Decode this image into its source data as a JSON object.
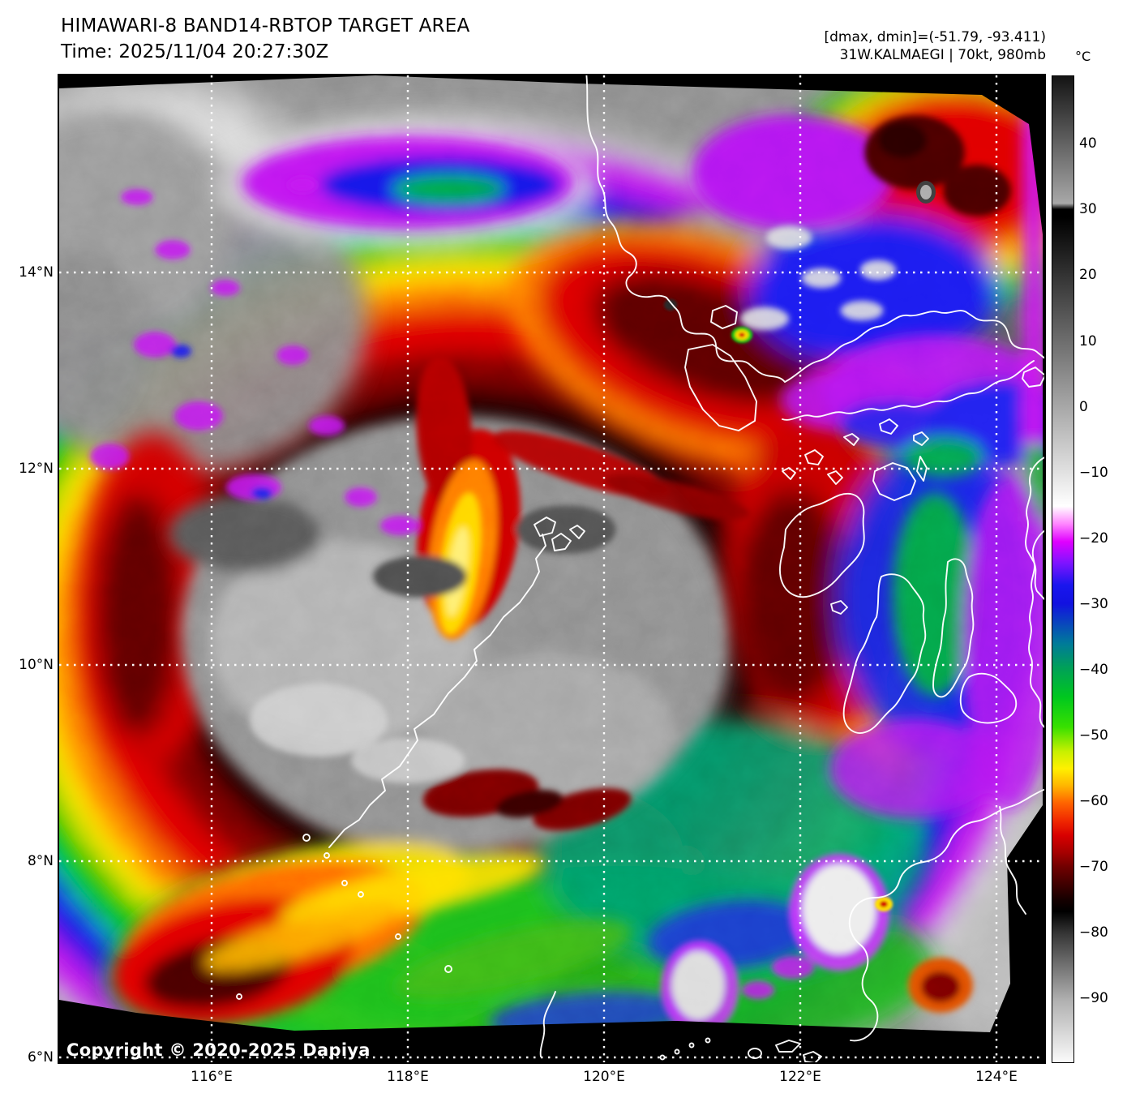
{
  "header": {
    "title": "HIMAWARI-8 BAND14-RBTOP TARGET AREA",
    "time": "Time: 2025/11/04 20:27:30Z",
    "range_info": "[dmax, dmin]=(-51.79, -93.411)",
    "storm_info": "31W.KALMAEGI | 70kt, 980mb"
  },
  "colorbar": {
    "unit": "°C",
    "ticks": [
      {
        "label": "40",
        "value": 40
      },
      {
        "label": "30",
        "value": 30
      },
      {
        "label": "20",
        "value": 20
      },
      {
        "label": "10",
        "value": 10
      },
      {
        "label": "0",
        "value": 0
      },
      {
        "label": "−10",
        "value": -10
      },
      {
        "label": "−20",
        "value": -20
      },
      {
        "label": "−30",
        "value": -30
      },
      {
        "label": "−40",
        "value": -40
      },
      {
        "label": "−50",
        "value": -50
      },
      {
        "label": "−60",
        "value": -60
      },
      {
        "label": "−70",
        "value": -70
      },
      {
        "label": "−80",
        "value": -80
      },
      {
        "label": "−90",
        "value": -90
      }
    ]
  },
  "axes": {
    "lat_labels": [
      "14°N",
      "12°N",
      "10°N",
      "8°N",
      "6°N"
    ],
    "lon_labels": [
      "116°E",
      "118°E",
      "120°E",
      "122°E",
      "124°E"
    ]
  },
  "map": {
    "copyright": "Copyright © 2020-2025 Dapiya"
  }
}
